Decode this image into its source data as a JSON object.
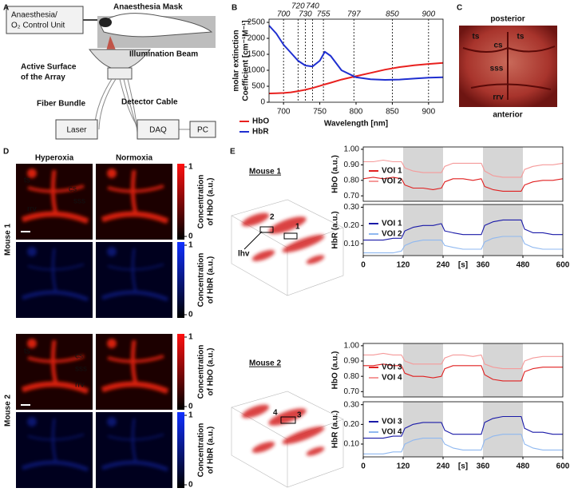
{
  "panel_labels": [
    "A",
    "B",
    "C",
    "D",
    "E"
  ],
  "panel_a": {
    "control_unit": [
      "Anaesthesia/",
      "O₂ Control Unit"
    ],
    "mask": "Anaesthesia Mask",
    "beam": "Illumination Beam",
    "array": [
      "Active Surface",
      "of the Array"
    ],
    "fiber": "Fiber Bundle",
    "detector": "Detector Cable",
    "laser": "Laser",
    "daq": "DAQ",
    "pc": "PC"
  },
  "panel_c": {
    "top": "posterior",
    "bottom": "anterior",
    "labels": [
      "ts",
      "ts",
      "cs",
      "sss",
      "rrv"
    ]
  },
  "panel_d": {
    "columns": [
      "Hyperoxia",
      "Normoxia"
    ],
    "rows": [
      "Mouse 1",
      "Mouse 2"
    ],
    "annotations_1": [
      "ts",
      "cs",
      "sss",
      "rrv"
    ],
    "annotations_2": [
      "ts",
      "cs",
      "sss",
      "rrv"
    ],
    "colorbars": [
      {
        "label": [
          "Concentration",
          "of HbO (a.u.)"
        ],
        "ticks": [
          0,
          1
        ]
      },
      {
        "label": [
          "Concentration",
          "of HbR (a.u.)"
        ],
        "ticks": [
          0,
          1
        ]
      },
      {
        "label": [
          "Concentration",
          "of HbO (a.u.)"
        ],
        "ticks": [
          0,
          1
        ]
      },
      {
        "label": [
          "Concentration",
          "of HbR (a.u.)"
        ],
        "ticks": [
          0,
          1
        ]
      }
    ]
  },
  "panel_e": {
    "mice": [
      "Mouse 1",
      "Mouse 2"
    ],
    "annotations_1": [
      "2",
      "1",
      "lhv"
    ],
    "annotations_2": [
      "4",
      "3"
    ]
  },
  "chart_data": [
    {
      "type": "line",
      "xlabel": "Wavelength [nm]",
      "ylabel": [
        "molar extinction",
        "Coefficient [cm⁻¹M⁻¹]"
      ],
      "x": [
        680,
        690,
        700,
        710,
        720,
        730,
        740,
        750,
        757,
        765,
        780,
        800,
        820,
        840,
        860,
        880,
        900,
        920
      ],
      "xlim": [
        680,
        920
      ],
      "ylim": [
        0,
        2600
      ],
      "xticks": [
        700,
        750,
        800,
        850,
        900
      ],
      "yticks": [
        0,
        500,
        1000,
        1500,
        2000,
        2500
      ],
      "markers": [
        700,
        720,
        730,
        740,
        755,
        797,
        850,
        900
      ],
      "series": [
        {
          "name": "HbO",
          "color": "#e8201e",
          "values": [
            276,
            280,
            290,
            310,
            348,
            390,
            446,
            510,
            560,
            610,
            710,
            816,
            918,
            1020,
            1100,
            1154,
            1198,
            1230
          ]
        },
        {
          "name": "HbR",
          "color": "#1f2fd0",
          "values": [
            2400,
            2150,
            1800,
            1550,
            1300,
            1150,
            1120,
            1300,
            1580,
            1450,
            1000,
            780,
            720,
            700,
            710,
            740,
            770,
            780
          ]
        }
      ]
    },
    {
      "type": "line",
      "ylabel": "HbO (a.u.)",
      "x": [
        0,
        30,
        60,
        90,
        115,
        125,
        150,
        180,
        210,
        235,
        245,
        270,
        300,
        330,
        355,
        365,
        390,
        420,
        450,
        475,
        485,
        510,
        540,
        570,
        600
      ],
      "xlim": [
        0,
        600
      ],
      "ylim": [
        0.665,
        1.015
      ],
      "yticks": [
        {
          "value": 0.7,
          "label": "0.70"
        },
        {
          "value": 0.8,
          "label": "0.80"
        },
        {
          "value": 0.9,
          "label": "0.90"
        },
        {
          "value": 1.0,
          "label": "1.00"
        }
      ],
      "shaded": [
        [
          120,
          240
        ],
        [
          360,
          480
        ]
      ],
      "series": [
        {
          "name": "VOI 1",
          "color": "#e02020",
          "values": [
            0.81,
            0.82,
            0.81,
            0.82,
            0.81,
            0.77,
            0.75,
            0.75,
            0.74,
            0.75,
            0.79,
            0.81,
            0.81,
            0.8,
            0.81,
            0.76,
            0.74,
            0.73,
            0.73,
            0.73,
            0.77,
            0.79,
            0.8,
            0.8,
            0.81
          ]
        },
        {
          "name": "VOI 2",
          "color": "#f59a9a",
          "values": [
            0.92,
            0.92,
            0.93,
            0.92,
            0.92,
            0.88,
            0.86,
            0.85,
            0.85,
            0.85,
            0.89,
            0.91,
            0.91,
            0.91,
            0.91,
            0.86,
            0.83,
            0.82,
            0.82,
            0.82,
            0.87,
            0.89,
            0.9,
            0.9,
            0.91
          ]
        }
      ]
    },
    {
      "type": "line",
      "ylabel": "HbR (a.u.)",
      "xlabel": "[s]",
      "x": [
        0,
        30,
        60,
        90,
        115,
        125,
        150,
        180,
        210,
        235,
        245,
        270,
        300,
        330,
        355,
        365,
        390,
        420,
        450,
        475,
        485,
        510,
        540,
        570,
        600
      ],
      "xlim": [
        0,
        600
      ],
      "ylim": [
        0.035,
        0.315
      ],
      "xticks": [
        0,
        120,
        240,
        360,
        480,
        600
      ],
      "yticks": [
        {
          "value": 0.1,
          "label": "0.10"
        },
        {
          "value": 0.2,
          "label": "0.20"
        },
        {
          "value": 0.3,
          "label": "0.30"
        }
      ],
      "shaded": [
        [
          120,
          240
        ],
        [
          360,
          480
        ]
      ],
      "series": [
        {
          "name": "VOI 1",
          "color": "#1a1aa8",
          "values": [
            0.12,
            0.12,
            0.12,
            0.13,
            0.13,
            0.17,
            0.19,
            0.2,
            0.2,
            0.21,
            0.17,
            0.16,
            0.15,
            0.15,
            0.15,
            0.2,
            0.22,
            0.23,
            0.23,
            0.23,
            0.18,
            0.16,
            0.16,
            0.15,
            0.15
          ]
        },
        {
          "name": "VOI 2",
          "color": "#8fb8f0",
          "values": [
            0.05,
            0.05,
            0.05,
            0.05,
            0.06,
            0.09,
            0.11,
            0.12,
            0.12,
            0.12,
            0.09,
            0.08,
            0.07,
            0.07,
            0.07,
            0.11,
            0.13,
            0.14,
            0.14,
            0.14,
            0.1,
            0.08,
            0.07,
            0.07,
            0.07
          ]
        }
      ]
    },
    {
      "type": "line",
      "ylabel": "HbO (a.u.)",
      "x": [
        0,
        30,
        60,
        90,
        115,
        125,
        150,
        180,
        210,
        235,
        245,
        270,
        300,
        330,
        355,
        365,
        390,
        420,
        450,
        475,
        485,
        510,
        540,
        570,
        600
      ],
      "xlim": [
        0,
        600
      ],
      "ylim": [
        0.665,
        1.015
      ],
      "yticks": [
        {
          "value": 0.7,
          "label": "0.70"
        },
        {
          "value": 0.8,
          "label": "0.80"
        },
        {
          "value": 0.9,
          "label": "0.90"
        },
        {
          "value": 1.0,
          "label": "1.00"
        }
      ],
      "shaded": [
        [
          120,
          240
        ],
        [
          360,
          480
        ]
      ],
      "series": [
        {
          "name": "VOI 3",
          "color": "#e02020",
          "values": [
            0.87,
            0.87,
            0.88,
            0.87,
            0.87,
            0.82,
            0.8,
            0.8,
            0.79,
            0.8,
            0.85,
            0.87,
            0.87,
            0.87,
            0.87,
            0.81,
            0.78,
            0.77,
            0.77,
            0.77,
            0.83,
            0.85,
            0.86,
            0.86,
            0.86
          ]
        },
        {
          "name": "VOI 4",
          "color": "#f59a9a",
          "values": [
            0.94,
            0.94,
            0.95,
            0.94,
            0.94,
            0.9,
            0.88,
            0.88,
            0.88,
            0.88,
            0.92,
            0.94,
            0.94,
            0.93,
            0.94,
            0.88,
            0.86,
            0.85,
            0.85,
            0.85,
            0.9,
            0.92,
            0.93,
            0.93,
            0.93
          ]
        }
      ]
    },
    {
      "type": "line",
      "ylabel": "HbR (a.u.)",
      "xlabel": "[s]",
      "x": [
        0,
        30,
        60,
        90,
        115,
        125,
        150,
        180,
        210,
        235,
        245,
        270,
        300,
        330,
        355,
        365,
        390,
        420,
        450,
        475,
        485,
        510,
        540,
        570,
        600
      ],
      "xlim": [
        0,
        600
      ],
      "ylim": [
        0.035,
        0.315
      ],
      "xticks": [
        0,
        120,
        240,
        360,
        480,
        600
      ],
      "yticks": [
        {
          "value": 0.1,
          "label": "0.10"
        },
        {
          "value": 0.2,
          "label": "0.20"
        },
        {
          "value": 0.3,
          "label": "0.30"
        }
      ],
      "shaded": [
        [
          120,
          240
        ],
        [
          360,
          480
        ]
      ],
      "series": [
        {
          "name": "VOI 3",
          "color": "#1a1aa8",
          "values": [
            0.13,
            0.13,
            0.13,
            0.14,
            0.14,
            0.18,
            0.2,
            0.21,
            0.21,
            0.21,
            0.17,
            0.15,
            0.15,
            0.15,
            0.15,
            0.21,
            0.23,
            0.24,
            0.24,
            0.24,
            0.18,
            0.16,
            0.16,
            0.15,
            0.15
          ]
        },
        {
          "name": "VOI 4",
          "color": "#8fb8f0",
          "values": [
            0.05,
            0.05,
            0.05,
            0.06,
            0.06,
            0.1,
            0.12,
            0.13,
            0.13,
            0.13,
            0.1,
            0.08,
            0.07,
            0.07,
            0.07,
            0.12,
            0.14,
            0.15,
            0.15,
            0.15,
            0.1,
            0.08,
            0.07,
            0.07,
            0.07
          ]
        }
      ]
    }
  ]
}
